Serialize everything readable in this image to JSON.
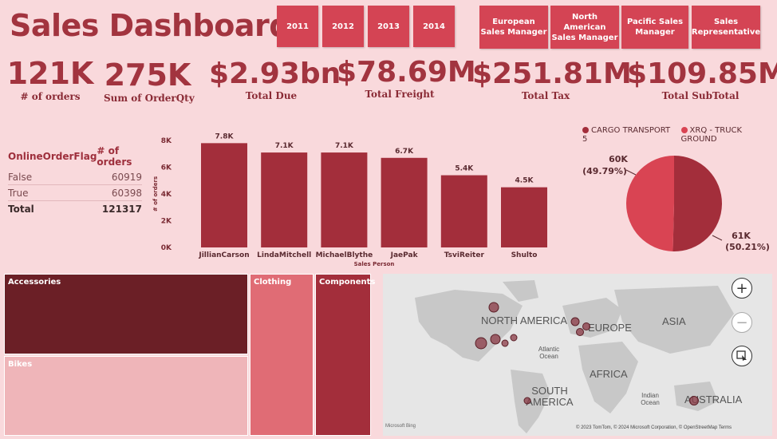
{
  "title": "Sales Dashboard",
  "year_slicers": [
    "2011",
    "2012",
    "2013",
    "2014"
  ],
  "manager_slicers": [
    "European Sales Manager",
    "North American Sales Manager",
    "Pacific Sales Manager",
    "Sales Representative"
  ],
  "kpis": [
    {
      "value": "121K",
      "label": "# of orders"
    },
    {
      "value": "275K",
      "label": "Sum of OrderQty"
    },
    {
      "value": "$2.93bn",
      "label": "Total Due"
    },
    {
      "value": "$78.69M",
      "label": "Total Freight"
    },
    {
      "value": "$251.81M",
      "label": "Total Tax"
    },
    {
      "value": "$109.85M",
      "label": "Total SubTotal"
    }
  ],
  "table": {
    "headers": [
      "OnlineOrderFlag",
      "# of orders"
    ],
    "rows": [
      [
        "False",
        "60919"
      ],
      [
        "True",
        "60398"
      ]
    ],
    "total": [
      "Total",
      "121317"
    ]
  },
  "chart_data": [
    {
      "type": "bar",
      "categories": [
        "JillianCarson",
        "LindaMitchell",
        "MichaelBlythe",
        "JaePak",
        "TsviReiter",
        "Shulto"
      ],
      "values": [
        7800,
        7100,
        7100,
        6700,
        5400,
        4500
      ],
      "data_labels": [
        "7.8K",
        "7.1K",
        "7.1K",
        "6.7K",
        "5.4K",
        "4.5K"
      ],
      "xlabel": "Sales Person",
      "ylabel": "# of orders",
      "ylim": [
        0,
        8000
      ],
      "yticks": [
        "0K",
        "2K",
        "4K",
        "6K",
        "8K"
      ],
      "color": "#a32e3b"
    },
    {
      "type": "pie",
      "legend": [
        "CARGO TRANSPORT 5",
        "XRQ - TRUCK GROUND"
      ],
      "values": [
        61000,
        60000
      ],
      "percents": [
        50.21,
        49.79
      ],
      "labels": [
        "61K",
        "60K"
      ],
      "pct_labels": [
        "(50.21%)",
        "(49.79%)"
      ],
      "colors": [
        "#a32e3b",
        "#d94453"
      ],
      "legend_placement": "top"
    }
  ],
  "treemap": {
    "items": [
      {
        "label": "Accessories",
        "color": "#6b1f26"
      },
      {
        "label": "Bikes",
        "color": "#efb5b9"
      },
      {
        "label": "Clothing",
        "color": "#e06c75"
      },
      {
        "label": "Components",
        "color": "#a32e3b"
      }
    ]
  },
  "map": {
    "regions": [
      "NORTH AMERICA",
      "EUROPE",
      "ASIA",
      "AFRICA",
      "SOUTH AMERICA",
      "AUSTRALIA"
    ],
    "oceans": [
      "Atlantic Ocean",
      "Indian Ocean"
    ],
    "attribution": "© 2023 TomTom, © 2024 Microsoft Corporation, © OpenStreetMap  Terms",
    "logo": "Microsoft Bing",
    "zoom_in": "+",
    "zoom_out": "−"
  }
}
